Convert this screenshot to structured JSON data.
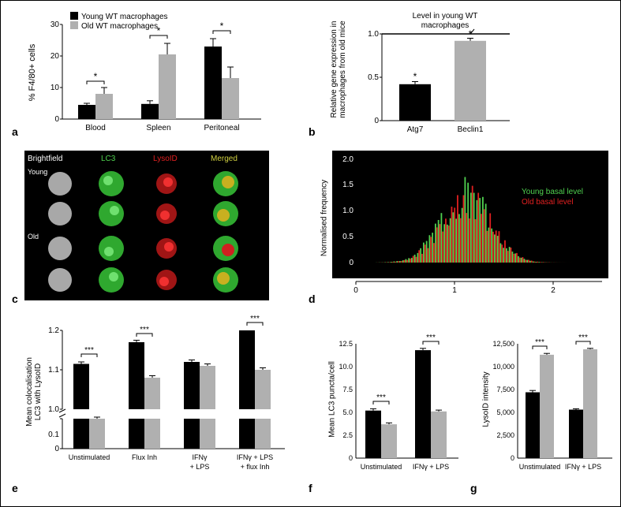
{
  "panel_a": {
    "label": "a",
    "type": "bar",
    "y_label": "% F4/80+ cells",
    "categories": [
      "Blood",
      "Spleen",
      "Peritoneal"
    ],
    "series": [
      {
        "name": "Young WT macrophages",
        "color": "#000000",
        "values": [
          4.5,
          4.8,
          23
        ],
        "errors": [
          0.5,
          1.0,
          2.5
        ]
      },
      {
        "name": "Old WT macrophages",
        "color": "#b0b0b0",
        "values": [
          8,
          20.5,
          13
        ],
        "errors": [
          2.0,
          3.5,
          3.5
        ]
      }
    ],
    "significance": [
      "*",
      "*",
      "*"
    ],
    "ylim": [
      0,
      30
    ],
    "yticks": [
      0,
      10,
      20,
      30
    ],
    "label_fontsize": 11,
    "tick_fontsize": 10,
    "legend_fontsize": 10
  },
  "panel_b": {
    "label": "b",
    "type": "bar",
    "title": "Level in young WT macrophages",
    "y_label": "Relative gene expression in macrophages from old mice",
    "categories": [
      "Atg7",
      "Beclin1"
    ],
    "values": [
      0.42,
      0.92
    ],
    "errors": [
      0.03,
      0.03
    ],
    "colors": [
      "#000000",
      "#b0b0b0"
    ],
    "significance": [
      "*",
      "*"
    ],
    "ylim": [
      0,
      1.0
    ],
    "yticks": [
      0,
      0.5,
      1.0
    ],
    "reference_line": 1.0
  },
  "panel_c": {
    "label": "c",
    "type": "microscopy",
    "rows": [
      "Young",
      "Old"
    ],
    "columns": [
      "Brightfield",
      "LC3",
      "LysoID",
      "Merged"
    ],
    "column_colors": [
      "#ffffff",
      "#4fd04f",
      "#e02020",
      "#d0d040"
    ],
    "background": "#000000"
  },
  "panel_d": {
    "label": "d",
    "type": "histogram",
    "y_label": "Normalised frequency",
    "legend": [
      "Young basal level",
      "Old basal level"
    ],
    "colors": [
      "#4fd04f",
      "#e02020"
    ],
    "xlim": [
      0,
      2.5
    ],
    "xticks": [
      0,
      1,
      2
    ],
    "ylim": [
      0,
      2.0
    ],
    "yticks": [
      0,
      0.5,
      1.0,
      1.5,
      2.0
    ],
    "background": "#000000"
  },
  "panel_e": {
    "label": "e",
    "type": "bar",
    "y_label": "Mean colocalisation LC3 with LysoID",
    "categories": [
      "Unstimulated",
      "Flux Inh",
      "IFNγ + LPS",
      "IFNγ + LPS + flux Inh"
    ],
    "series": [
      {
        "color": "#000000",
        "values": [
          1.115,
          1.17,
          1.12,
          1.2
        ],
        "errors": [
          0.005,
          0.005,
          0.005,
          0.005
        ]
      },
      {
        "color": "#b0b0b0",
        "values": [
          0.975,
          1.08,
          1.11,
          1.1
        ],
        "errors": [
          0.005,
          0.005,
          0.005,
          0.005
        ]
      }
    ],
    "significance": [
      "***",
      "***",
      "",
      "***"
    ],
    "ylim_upper": [
      1.0,
      1.2
    ],
    "ylim_lower": [
      0,
      0.1
    ],
    "yticks_upper": [
      1.0,
      1.1,
      1.2
    ],
    "yticks_lower": [
      0,
      0.1
    ]
  },
  "panel_f": {
    "label": "f",
    "type": "bar",
    "y_label": "Mean LC3 puncta/cell",
    "categories": [
      "Unstimulated",
      "IFNγ + LPS"
    ],
    "series": [
      {
        "color": "#000000",
        "values": [
          5.2,
          11.8
        ],
        "errors": [
          0.2,
          0.2
        ]
      },
      {
        "color": "#b0b0b0",
        "values": [
          3.7,
          5.1
        ],
        "errors": [
          0.15,
          0.15
        ]
      }
    ],
    "significance": [
      "***",
      "***"
    ],
    "ylim": [
      0,
      12.5
    ],
    "yticks": [
      0,
      2.5,
      5.0,
      7.5,
      10.0,
      12.5
    ]
  },
  "panel_g": {
    "label": "g",
    "type": "bar",
    "y_label": "LysoID intensity",
    "categories": [
      "Unstimulated",
      "IFNγ + LPS"
    ],
    "series": [
      {
        "color": "#000000",
        "values": [
          7200,
          5300
        ],
        "errors": [
          200,
          100
        ]
      },
      {
        "color": "#b0b0b0",
        "values": [
          11300,
          11900
        ],
        "errors": [
          150,
          100
        ]
      }
    ],
    "significance": [
      "***",
      "***"
    ],
    "ylim": [
      0,
      12500
    ],
    "yticks": [
      0,
      2500,
      5000,
      7500,
      10000,
      12500
    ]
  }
}
